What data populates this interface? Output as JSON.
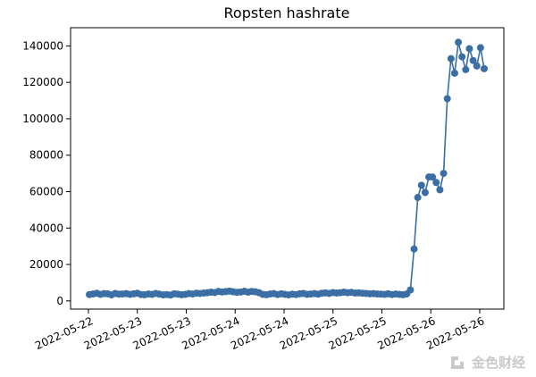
{
  "chart_data": {
    "type": "line",
    "title": "Ropsten hashrate",
    "xlabel": "",
    "ylabel": "",
    "x_tick_labels": [
      "2022-05-22",
      "2022-05-23",
      "2022-05-23",
      "2022-05-24",
      "2022-05-24",
      "2022-05-25",
      "2022-05-25",
      "2022-05-26",
      "2022-05-26"
    ],
    "y_ticks": [
      0,
      20000,
      40000,
      60000,
      80000,
      100000,
      120000,
      140000
    ],
    "y_tick_labels": [
      "0",
      "20000",
      "40000",
      "60000",
      "80000",
      "100000",
      "120000",
      "140000"
    ],
    "ylim": [
      -4500,
      150000
    ],
    "grid": false,
    "marker": "circle",
    "color": "#3a6ea5",
    "series": [
      {
        "values": [
          3500,
          3800,
          4200,
          3600,
          4000,
          3900,
          3300,
          4100,
          3700,
          3800,
          4000,
          3600,
          3900,
          4200,
          3500,
          3400,
          3800,
          3600,
          4100,
          3700,
          3300,
          3500,
          3200,
          3900,
          3700,
          3400,
          3600,
          4000,
          3800,
          4200,
          4100,
          4300,
          4500,
          4800,
          4600,
          5200,
          4900,
          5100,
          5400,
          5000,
          4700,
          4900,
          5300,
          4800,
          5200,
          5000,
          4500,
          3600,
          3400,
          3800,
          4000,
          3500,
          3900,
          3600,
          3300,
          3700,
          3500,
          3900,
          4100,
          3600,
          3800,
          4000,
          3700,
          4200,
          4400,
          4100,
          4600,
          4300,
          4500,
          4800,
          4500,
          4700,
          4300,
          4400,
          4200,
          4100,
          3900,
          4000,
          3800,
          3700,
          3600,
          3900,
          3500,
          3800,
          3600,
          3400,
          3800,
          6000,
          28500,
          56800,
          63500,
          59500,
          68000,
          68000,
          65000,
          61000,
          70000,
          111000,
          133000,
          125000,
          142000,
          134000,
          127000,
          138500,
          132000,
          129000,
          139000,
          127500
        ]
      }
    ]
  },
  "watermark": {
    "text": "金色财经",
    "icon": "jinse-logo-icon",
    "color": "#c9c9c9"
  }
}
